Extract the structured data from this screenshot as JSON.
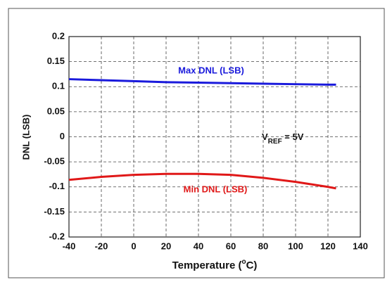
{
  "chart_data": {
    "type": "line",
    "ylabel": "DNL (LSB)",
    "xlabel": {
      "text": "Temperature (",
      "sup": "o",
      "end": "C)"
    },
    "annotation": {
      "main": "V",
      "sub": "REF",
      "rest": " = 5V"
    },
    "x": [
      -40,
      -20,
      0,
      20,
      40,
      60,
      80,
      100,
      120,
      125
    ],
    "series": [
      {
        "name": "Max DNL (LSB)",
        "color": "#1a1adc",
        "values": [
          0.115,
          0.113,
          0.111,
          0.109,
          0.108,
          0.107,
          0.106,
          0.105,
          0.104,
          0.104
        ]
      },
      {
        "name": "Min DNL (LSB)",
        "color": "#e01818",
        "values": [
          -0.086,
          -0.08,
          -0.076,
          -0.074,
          -0.074,
          -0.076,
          -0.082,
          -0.09,
          -0.1,
          -0.103
        ]
      }
    ],
    "xlim": [
      -40,
      140
    ],
    "xticks": [
      -40,
      -20,
      0,
      20,
      40,
      60,
      80,
      100,
      120,
      140
    ],
    "ylim": [
      -0.2,
      0.2
    ],
    "yticks": [
      0.2,
      0.15,
      0.1,
      0.05,
      0,
      -0.05,
      -0.1,
      -0.15,
      -0.2
    ],
    "grid": true
  }
}
